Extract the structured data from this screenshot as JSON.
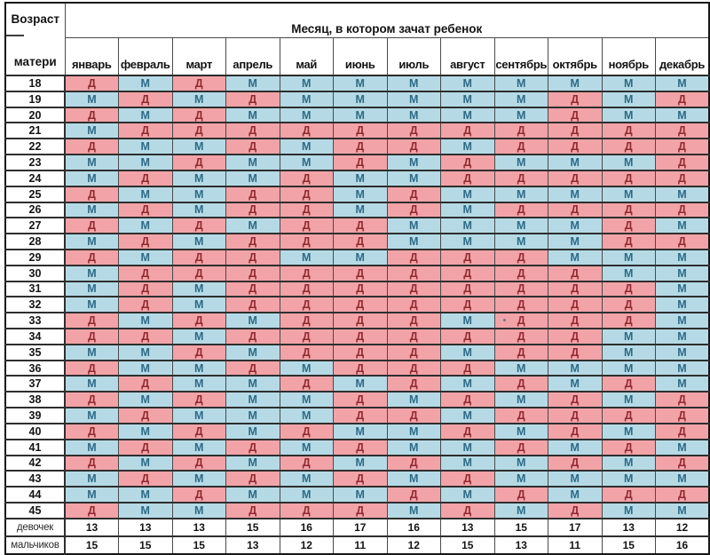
{
  "header": {
    "corner_line1": "Возраст",
    "corner_line2": "матери",
    "title": "Месяц, в котором зачат ребенок"
  },
  "legend": {
    "girl_letter": "Д",
    "boy_letter": "М"
  },
  "colors": {
    "girl_bg": "#F2A3A7",
    "boy_bg": "#B5DAE6",
    "girl_letter": "#8F2A30",
    "boy_letter": "#2E6A85",
    "grid_line": "#4A4A4A",
    "outer_border": "#161616",
    "text": "#141414"
  },
  "annotations": {
    "stray_dot": {
      "age": 33,
      "month_index": 8
    }
  },
  "chart_data": {
    "type": "table",
    "title": "Месяц, в котором зачат ребенок",
    "row_header": "Возраст матери",
    "cell_legend": {
      "Д": "pink cell",
      "М": "blue cell"
    },
    "columns": [
      "январь",
      "февраль",
      "март",
      "апрель",
      "май",
      "июнь",
      "июль",
      "август",
      "сентябрь",
      "октябрь",
      "ноябрь",
      "декабрь"
    ],
    "rows": [
      {
        "age": 18,
        "cells": [
          "Д",
          "М",
          "Д",
          "М",
          "М",
          "М",
          "М",
          "М",
          "М",
          "М",
          "М",
          "М"
        ]
      },
      {
        "age": 19,
        "cells": [
          "М",
          "Д",
          "М",
          "Д",
          "М",
          "М",
          "М",
          "М",
          "М",
          "Д",
          "М",
          "Д"
        ]
      },
      {
        "age": 20,
        "cells": [
          "Д",
          "М",
          "Д",
          "М",
          "М",
          "М",
          "М",
          "М",
          "М",
          "Д",
          "М",
          "М"
        ]
      },
      {
        "age": 21,
        "cells": [
          "М",
          "Д",
          "Д",
          "Д",
          "Д",
          "Д",
          "Д",
          "Д",
          "Д",
          "Д",
          "Д",
          "Д"
        ]
      },
      {
        "age": 22,
        "cells": [
          "Д",
          "М",
          "М",
          "Д",
          "М",
          "Д",
          "Д",
          "М",
          "Д",
          "Д",
          "Д",
          "Д"
        ]
      },
      {
        "age": 23,
        "cells": [
          "М",
          "М",
          "Д",
          "М",
          "М",
          "Д",
          "М",
          "Д",
          "М",
          "М",
          "М",
          "Д"
        ]
      },
      {
        "age": 24,
        "cells": [
          "М",
          "Д",
          "М",
          "М",
          "Д",
          "М",
          "М",
          "Д",
          "Д",
          "Д",
          "Д",
          "Д"
        ]
      },
      {
        "age": 25,
        "cells": [
          "Д",
          "М",
          "М",
          "Д",
          "Д",
          "М",
          "Д",
          "М",
          "М",
          "М",
          "М",
          "М"
        ]
      },
      {
        "age": 26,
        "cells": [
          "М",
          "Д",
          "М",
          "Д",
          "Д",
          "М",
          "Д",
          "М",
          "Д",
          "Д",
          "Д",
          "Д"
        ]
      },
      {
        "age": 27,
        "cells": [
          "Д",
          "М",
          "Д",
          "М",
          "Д",
          "Д",
          "М",
          "М",
          "М",
          "М",
          "Д",
          "М"
        ]
      },
      {
        "age": 28,
        "cells": [
          "М",
          "Д",
          "М",
          "Д",
          "Д",
          "Д",
          "М",
          "М",
          "М",
          "М",
          "Д",
          "Д"
        ]
      },
      {
        "age": 29,
        "cells": [
          "Д",
          "М",
          "Д",
          "Д",
          "М",
          "М",
          "Д",
          "Д",
          "Д",
          "М",
          "М",
          "М"
        ]
      },
      {
        "age": 30,
        "cells": [
          "М",
          "Д",
          "Д",
          "Д",
          "Д",
          "Д",
          "Д",
          "Д",
          "Д",
          "Д",
          "М",
          "М"
        ]
      },
      {
        "age": 31,
        "cells": [
          "М",
          "Д",
          "М",
          "Д",
          "Д",
          "Д",
          "Д",
          "Д",
          "Д",
          "Д",
          "Д",
          "М"
        ]
      },
      {
        "age": 32,
        "cells": [
          "М",
          "Д",
          "М",
          "Д",
          "Д",
          "Д",
          "Д",
          "Д",
          "Д",
          "Д",
          "Д",
          "М"
        ]
      },
      {
        "age": 33,
        "cells": [
          "Д",
          "М",
          "Д",
          "М",
          "Д",
          "Д",
          "Д",
          "М",
          "Д",
          "Д",
          "Д",
          "М"
        ]
      },
      {
        "age": 34,
        "cells": [
          "Д",
          "Д",
          "М",
          "Д",
          "Д",
          "Д",
          "Д",
          "Д",
          "Д",
          "Д",
          "М",
          "М"
        ]
      },
      {
        "age": 35,
        "cells": [
          "М",
          "М",
          "Д",
          "М",
          "Д",
          "Д",
          "Д",
          "М",
          "Д",
          "Д",
          "М",
          "М"
        ]
      },
      {
        "age": 36,
        "cells": [
          "Д",
          "М",
          "М",
          "Д",
          "М",
          "Д",
          "Д",
          "Д",
          "М",
          "М",
          "М",
          "М"
        ]
      },
      {
        "age": 37,
        "cells": [
          "М",
          "Д",
          "М",
          "М",
          "Д",
          "М",
          "Д",
          "М",
          "Д",
          "М",
          "Д",
          "М"
        ]
      },
      {
        "age": 38,
        "cells": [
          "Д",
          "М",
          "Д",
          "М",
          "М",
          "Д",
          "М",
          "Д",
          "М",
          "Д",
          "М",
          "Д"
        ]
      },
      {
        "age": 39,
        "cells": [
          "М",
          "Д",
          "М",
          "М",
          "М",
          "Д",
          "Д",
          "М",
          "Д",
          "Д",
          "Д",
          "Д"
        ]
      },
      {
        "age": 40,
        "cells": [
          "Д",
          "М",
          "Д",
          "М",
          "Д",
          "М",
          "М",
          "Д",
          "М",
          "Д",
          "М",
          "Д"
        ]
      },
      {
        "age": 41,
        "cells": [
          "М",
          "Д",
          "М",
          "Д",
          "М",
          "Д",
          "М",
          "М",
          "Д",
          "М",
          "Д",
          "М"
        ]
      },
      {
        "age": 42,
        "cells": [
          "Д",
          "М",
          "Д",
          "М",
          "Д",
          "М",
          "Д",
          "М",
          "М",
          "Д",
          "М",
          "Д"
        ]
      },
      {
        "age": 43,
        "cells": [
          "М",
          "Д",
          "М",
          "Д",
          "М",
          "Д",
          "М",
          "Д",
          "М",
          "М",
          "М",
          "М"
        ]
      },
      {
        "age": 44,
        "cells": [
          "М",
          "М",
          "Д",
          "М",
          "М",
          "М",
          "Д",
          "М",
          "Д",
          "М",
          "Д",
          "Д"
        ]
      },
      {
        "age": 45,
        "cells": [
          "Д",
          "М",
          "М",
          "Д",
          "Д",
          "Д",
          "М",
          "Д",
          "М",
          "Д",
          "М",
          "М"
        ]
      }
    ],
    "summary_rows": [
      {
        "label": "девочек",
        "values": [
          13,
          13,
          13,
          15,
          16,
          17,
          16,
          13,
          15,
          17,
          13,
          12
        ]
      },
      {
        "label": "мальчиков",
        "values": [
          15,
          15,
          15,
          13,
          12,
          11,
          12,
          15,
          13,
          11,
          15,
          16
        ]
      }
    ]
  }
}
